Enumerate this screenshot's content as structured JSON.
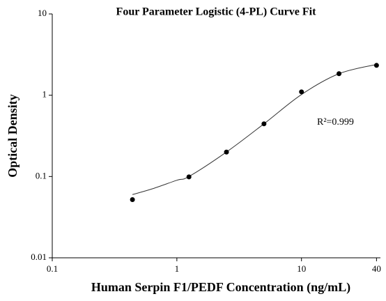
{
  "chart_data": {
    "type": "scatter",
    "title": "Four Parameter Logistic (4-PL) Curve Fit",
    "x_label": "Human Serpin F1/PEDF Concentration (ng/mL)",
    "y_label": "Optical Density",
    "annotation": "R²=0.999",
    "x": [
      0.44,
      1.25,
      2.5,
      5,
      10,
      20,
      40
    ],
    "values": [
      0.052,
      0.099,
      0.2,
      0.445,
      1.1,
      1.84,
      2.33
    ],
    "curve": {
      "x": [
        0.44,
        0.625,
        1,
        1.25,
        2.5,
        5,
        10,
        20,
        40
      ],
      "values": [
        0.06,
        0.07,
        0.09,
        0.1,
        0.2,
        0.445,
        1.02,
        1.84,
        2.39
      ]
    },
    "color": "#000000",
    "xscale": "log",
    "yscale": "log",
    "xlim": [
      0.1,
      43
    ],
    "ylim": [
      0.01,
      10
    ],
    "xticks": [
      0.1,
      1,
      10,
      40
    ],
    "yticks": [
      0.01,
      0.1,
      1,
      10
    ]
  }
}
